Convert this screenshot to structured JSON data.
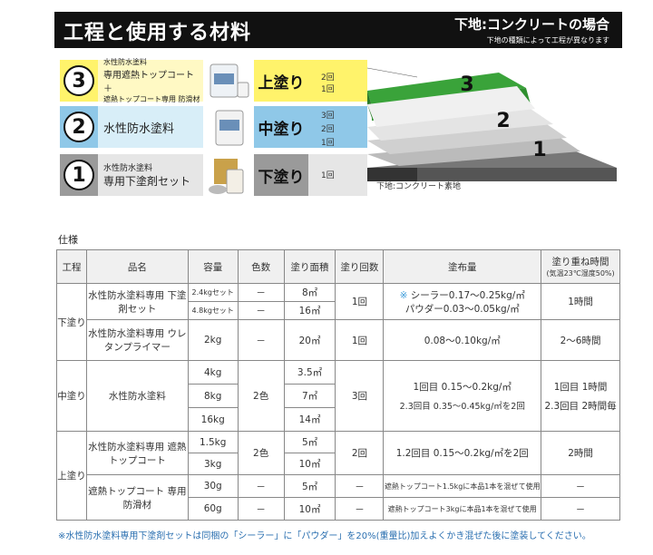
{
  "header": {
    "title": "工程と使用する材料",
    "right_title": "下地:コンクリートの場合",
    "right_sub": "下地の種類によって工程が異なります"
  },
  "steps": [
    {
      "num": "3",
      "lines": [
        "水性防水塗料",
        "専用遮熱トップコート ＋",
        "遮熱トップコート専用 防滑材"
      ],
      "label": "上塗り",
      "counts": [
        "2回",
        "1回"
      ],
      "color": "#fff36b",
      "light": "#fff9c4"
    },
    {
      "num": "2",
      "lines": [
        "水性防水塗料"
      ],
      "label": "中塗り",
      "counts": [
        "3回",
        "2回",
        "1回"
      ],
      "color": "#8fc8e8",
      "light": "#d8eef8"
    },
    {
      "num": "1",
      "lines": [
        "水性防水塗料",
        "専用下塗剤セット"
      ],
      "label": "下塗り",
      "counts": [
        "1回"
      ],
      "color": "#9a9a9a",
      "light": "#e6e6e6"
    }
  ],
  "diagram": {
    "layer_labels": [
      "3",
      "2",
      "1"
    ],
    "base_label": "下地:コンクリート素地",
    "top_color": "#3aa33a"
  },
  "spec_title": "仕様",
  "table": {
    "headers": [
      "工程",
      "品名",
      "容量",
      "色数",
      "塗り面積",
      "塗り回数",
      "塗布量",
      "塗り重ね時間",
      "(気温23℃湿度50%)"
    ],
    "groups": {
      "shita": "下塗り",
      "naka": "中塗り",
      "ue": "上塗り"
    },
    "r1": {
      "name": "水性防水塗料専用 下塗剤セット",
      "cap": [
        "2.4kgセット",
        "4.8kgセット"
      ],
      "colors": [
        "－",
        "－"
      ],
      "area": [
        "8㎡",
        "16㎡"
      ],
      "times": "1回",
      "mark": "※",
      "amount": [
        "シーラー0.17～0.25kg/㎡",
        "パウダー0.03～0.05kg/㎡"
      ],
      "recoat": "1時間"
    },
    "r2": {
      "name": "水性防水塗料専用 ウレタンプライマー",
      "cap": "2kg",
      "colors": "－",
      "area": "20㎡",
      "times": "1回",
      "amount": "0.08～0.10kg/㎡",
      "recoat": "2～6時間"
    },
    "r3": {
      "name": "水性防水塗料",
      "cap": [
        "4kg",
        "8kg",
        "16kg"
      ],
      "colors": "2色",
      "area": [
        "3.5㎡",
        "7㎡",
        "14㎡"
      ],
      "times": "3回",
      "amount": [
        "1回目 0.15～0.2kg/㎡",
        "2.3回目 0.35～0.45kg/㎡を2回"
      ],
      "recoat": [
        "1回目 1時間",
        "2.3回目 2時間毎"
      ]
    },
    "r4": {
      "name": "水性防水塗料専用 遮熱トップコート",
      "cap": [
        "1.5kg",
        "3kg"
      ],
      "colors": "2色",
      "area": [
        "5㎡",
        "10㎡"
      ],
      "times": "2回",
      "amount": "1.2回目 0.15～0.2kg/㎡を2回",
      "recoat": "2時間"
    },
    "r5": {
      "name": "遮熱トップコート 専用防滑材",
      "cap": [
        "30g",
        "60g"
      ],
      "colors": [
        "－",
        "－"
      ],
      "area": [
        "5㎡",
        "10㎡"
      ],
      "times": [
        "－",
        "－"
      ],
      "amount": [
        "遮熱トップコート1.5kgに本品1本を混ぜて使用",
        "遮熱トップコート3kgに本品1本を混ぜて使用"
      ],
      "recoat": [
        "－",
        "－"
      ]
    }
  },
  "footnote": "※水性防水塗料専用下塗剤セットは同梱の「シーラー」に「パウダー」を20%(重量比)加えよくかき混ぜた後に塗装してください。"
}
